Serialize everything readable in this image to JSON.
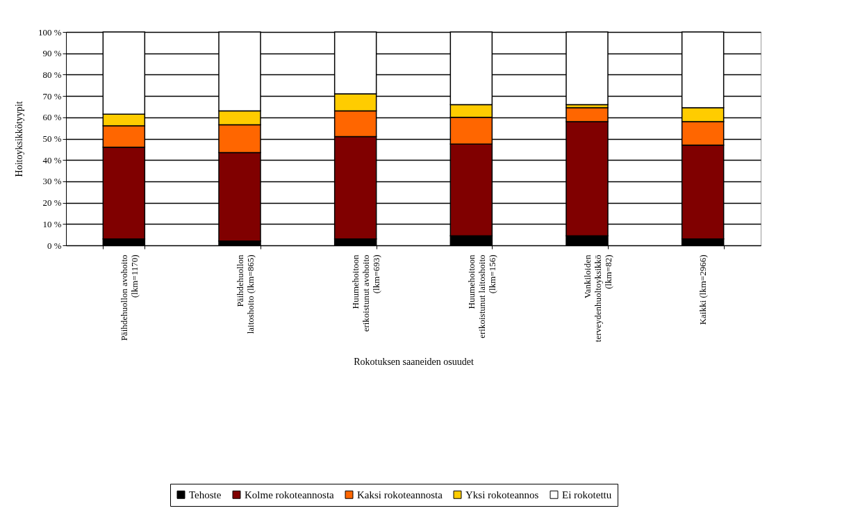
{
  "chart_data": {
    "type": "bar",
    "stacked": true,
    "xlabel": "Rokotuksen saaneiden osuudet",
    "ylabel": "Hoitoyksikkötyypit",
    "categories": [
      "Päihdehuollon avohoito\n(lkm=1170)",
      "Päihdehuollon\nlaitoshoito (lkm=865)",
      "Huumehoitoon\nerikoistunut avohoito\n(lkm=693)",
      "Huumehoitoon\nerikoistunut laitoshoito\n(lkm=156)",
      "Vankiloiden\nterveydenhuoltoyksikkö\n(lkm=82)",
      "Kaikki (lkm=2966)"
    ],
    "series": [
      {
        "name": "Tehoste",
        "color": "#000000",
        "values": [
          3,
          2,
          3,
          4.5,
          4.5,
          3
        ]
      },
      {
        "name": "Kolme rokoteannosta",
        "color": "#800000",
        "values": [
          43,
          41.5,
          48,
          43,
          53.5,
          44
        ]
      },
      {
        "name": "Kaksi rokoteannosta",
        "color": "#ff6600",
        "values": [
          10,
          13,
          12,
          12.5,
          6.5,
          11
        ]
      },
      {
        "name": "Yksi rokoteannos",
        "color": "#ffcc00",
        "values": [
          5.5,
          6.5,
          8,
          6,
          1.5,
          6.5
        ]
      },
      {
        "name": "Ei rokotettu",
        "color": "#ffffff",
        "values": [
          38.5,
          37,
          29,
          34,
          34,
          35.5
        ]
      }
    ],
    "ylim": [
      0,
      100
    ],
    "yticks": [
      {
        "value": 0,
        "label": "0 %"
      },
      {
        "value": 10,
        "label": "10 %"
      },
      {
        "value": 20,
        "label": "20 %"
      },
      {
        "value": 30,
        "label": "30 %"
      },
      {
        "value": 40,
        "label": "40 %"
      },
      {
        "value": 50,
        "label": "50 %"
      },
      {
        "value": 60,
        "label": "60 %"
      },
      {
        "value": 70,
        "label": "70 %"
      },
      {
        "value": 80,
        "label": "80 %"
      },
      {
        "value": 90,
        "label": "90 %"
      },
      {
        "value": 100,
        "label": "100 %"
      }
    ],
    "grid": "y",
    "legend": "bottom"
  }
}
